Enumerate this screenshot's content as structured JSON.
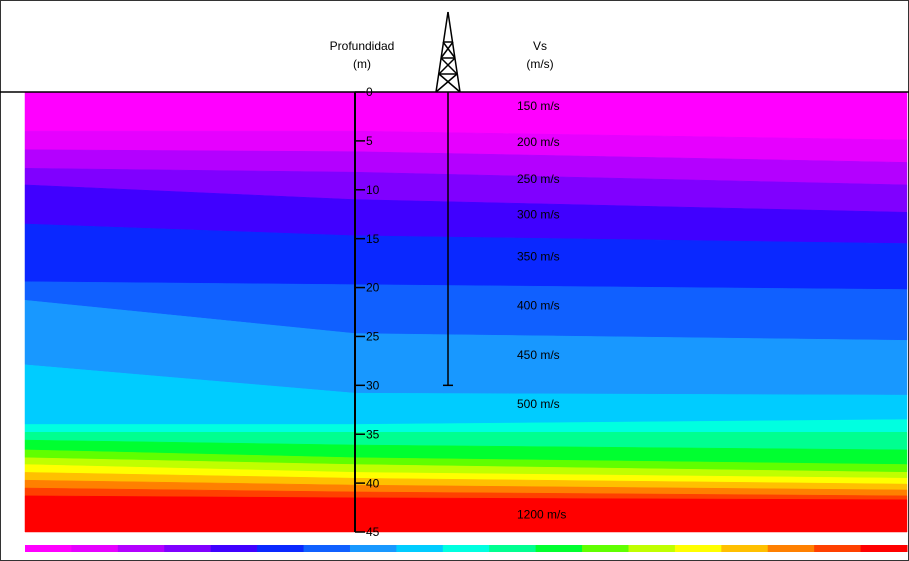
{
  "chart_data": {
    "type": "layered-section",
    "axis_title": "Profundidad",
    "axis_unit": "(m)",
    "value_title": "Vs",
    "value_unit": "(m/s)",
    "ylim": [
      0,
      45
    ],
    "yticks": [
      0,
      5,
      10,
      15,
      20,
      25,
      30,
      35,
      40,
      45
    ],
    "borehole_depth": 30,
    "layers": [
      {
        "color": "#ff00ff",
        "bottom": [
          4.0,
          4.0,
          4.9
        ]
      },
      {
        "color": "#e600ff",
        "bottom": [
          5.9,
          6.1,
          7.2
        ]
      },
      {
        "color": "#b400ff",
        "bottom": [
          7.8,
          8.2,
          9.5
        ]
      },
      {
        "color": "#8000ff",
        "bottom": [
          9.5,
          11.0,
          12.3
        ]
      },
      {
        "color": "#4000ff",
        "bottom": [
          13.5,
          14.7,
          15.5
        ]
      },
      {
        "color": "#0a28ff",
        "bottom": [
          19.4,
          19.7,
          20.2
        ]
      },
      {
        "color": "#1060ff",
        "bottom": [
          21.3,
          24.7,
          25.4
        ]
      },
      {
        "color": "#1898ff",
        "bottom": [
          27.9,
          30.8,
          31.0
        ]
      },
      {
        "color": "#00ccff",
        "bottom": [
          34.0,
          34.0,
          33.5
        ]
      },
      {
        "color": "#00ffe0",
        "bottom": [
          34.8,
          34.8,
          34.8
        ]
      },
      {
        "color": "#00ff90",
        "bottom": [
          35.6,
          36.1,
          36.6
        ]
      },
      {
        "color": "#00ff30",
        "bottom": [
          36.6,
          37.4,
          38.1
        ]
      },
      {
        "color": "#60ff00",
        "bottom": [
          37.4,
          38.1,
          38.9
        ]
      },
      {
        "color": "#c0ff00",
        "bottom": [
          38.1,
          38.9,
          39.5
        ]
      },
      {
        "color": "#ffff00",
        "bottom": [
          38.9,
          39.5,
          40.1
        ]
      },
      {
        "color": "#ffc000",
        "bottom": [
          39.7,
          40.2,
          40.7
        ]
      },
      {
        "color": "#ff8000",
        "bottom": [
          40.5,
          40.9,
          41.3
        ]
      },
      {
        "color": "#ff4000",
        "bottom": [
          41.3,
          41.5,
          41.7
        ]
      },
      {
        "color": "#ff0000",
        "bottom": [
          45,
          45,
          45
        ]
      }
    ],
    "annotations": [
      {
        "text": "150 m/s",
        "depth": 1.5
      },
      {
        "text": "200 m/s",
        "depth": 5.2
      },
      {
        "text": "250 m/s",
        "depth": 9.0
      },
      {
        "text": "300 m/s",
        "depth": 12.6
      },
      {
        "text": "350 m/s",
        "depth": 16.9
      },
      {
        "text": "400 m/s",
        "depth": 21.9
      },
      {
        "text": "450 m/s",
        "depth": 27.0
      },
      {
        "text": "500 m/s",
        "depth": 32.0
      },
      {
        "text": "1200 m/s",
        "depth": 43.3
      }
    ]
  }
}
